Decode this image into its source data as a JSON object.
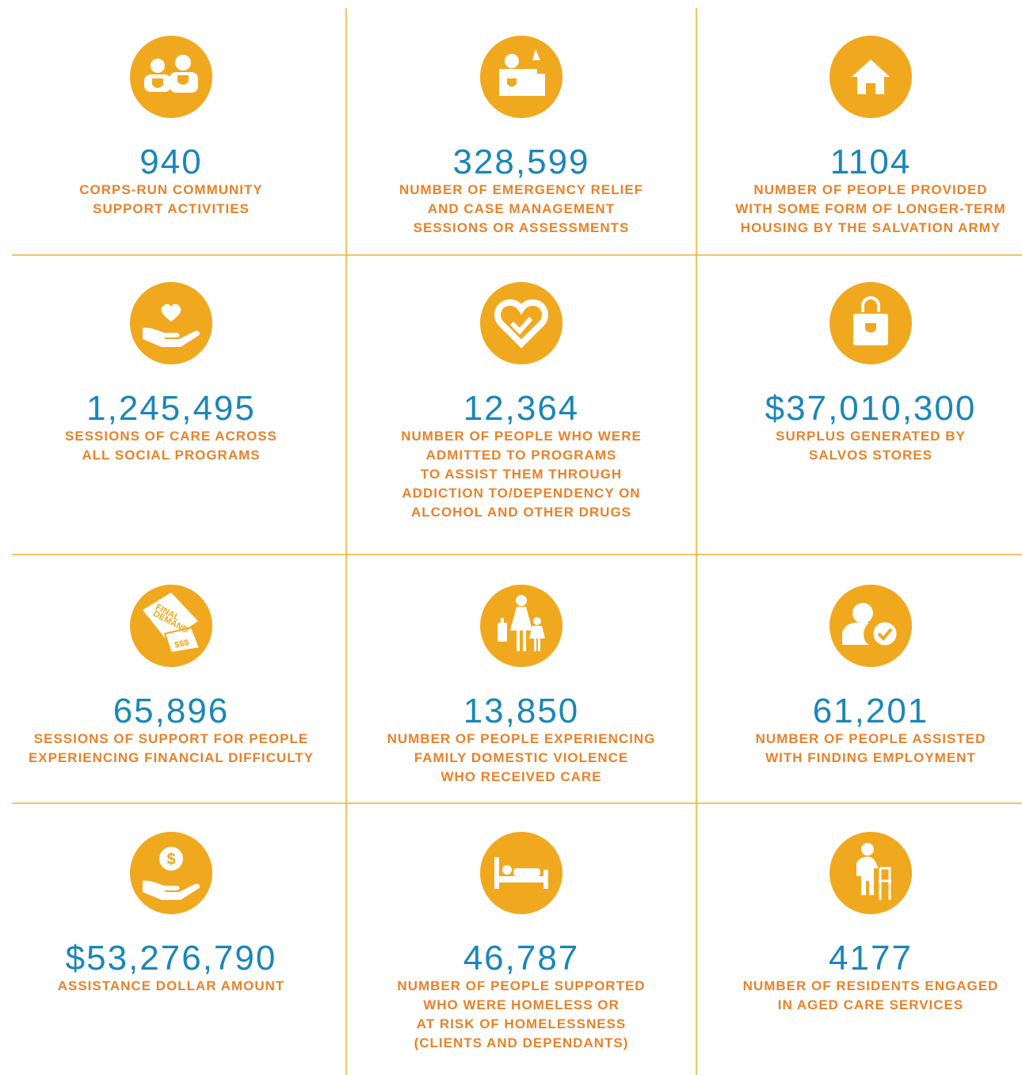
{
  "cells": [
    {
      "number": "940",
      "description": [
        "CORPS-RUN COMMUNITY",
        "SUPPORT ACTIVITIES"
      ]
    },
    {
      "number": "328,599",
      "description": [
        "NUMBER OF EMERGENCY RELIEF",
        "AND CASE MANAGEMENT",
        "SESSIONS OR ASSESSMENTS"
      ]
    },
    {
      "number": "1104",
      "description": [
        "NUMBER OF PEOPLE PROVIDED",
        "WITH SOME FORM OF LONGER-TERM",
        "HOUSING BY THE SALVATION ARMY"
      ]
    },
    {
      "number": "1,245,495",
      "description": [
        "SESSIONS OF CARE ACROSS",
        "ALL SOCIAL PROGRAMS"
      ]
    },
    {
      "number": "12,364",
      "description": [
        "NUMBER OF PEOPLE WHO WERE",
        "ADMITTED TO PROGRAMS",
        "TO ASSIST THEM THROUGH",
        "ADDICTION TO/DEPENDENCY ON",
        "ALCOHOL AND OTHER DRUGS"
      ]
    },
    {
      "number": "$37,010,300",
      "description": [
        "SURPLUS GENERATED BY",
        "SALVOS STORES"
      ]
    },
    {
      "icon_text": [
        "FINAL",
        "DEMAND",
        "$$$"
      ],
      "number": "65,896",
      "description": [
        "SESSIONS OF SUPPORT FOR PEOPLE",
        "EXPERIENCING FINANCIAL DIFFICULTY"
      ]
    },
    {
      "number": "13,850",
      "description": [
        "NUMBER OF PEOPLE EXPERIENCING",
        "FAMILY DOMESTIC VIOLENCE",
        "WHO RECEIVED CARE"
      ]
    },
    {
      "number": "61,201",
      "description": [
        "NUMBER OF PEOPLE ASSISTED",
        "WITH FINDING EMPLOYMENT"
      ]
    },
    {
      "icon_text": [
        "$"
      ],
      "number": "$53,276,790",
      "description": [
        "ASSISTANCE DOLLAR AMOUNT"
      ]
    },
    {
      "number": "46,787",
      "description": [
        "NUMBER OF PEOPLE SUPPORTED",
        "WHO WERE HOMELESS OR",
        "AT RISK OF HOMELESSNESS",
        "(CLIENTS AND DEPENDANTS)"
      ]
    },
    {
      "number": "4177",
      "description": [
        "NUMBER OF RESIDENTS ENGAGED",
        "IN AGED CARE SERVICES"
      ]
    }
  ]
}
